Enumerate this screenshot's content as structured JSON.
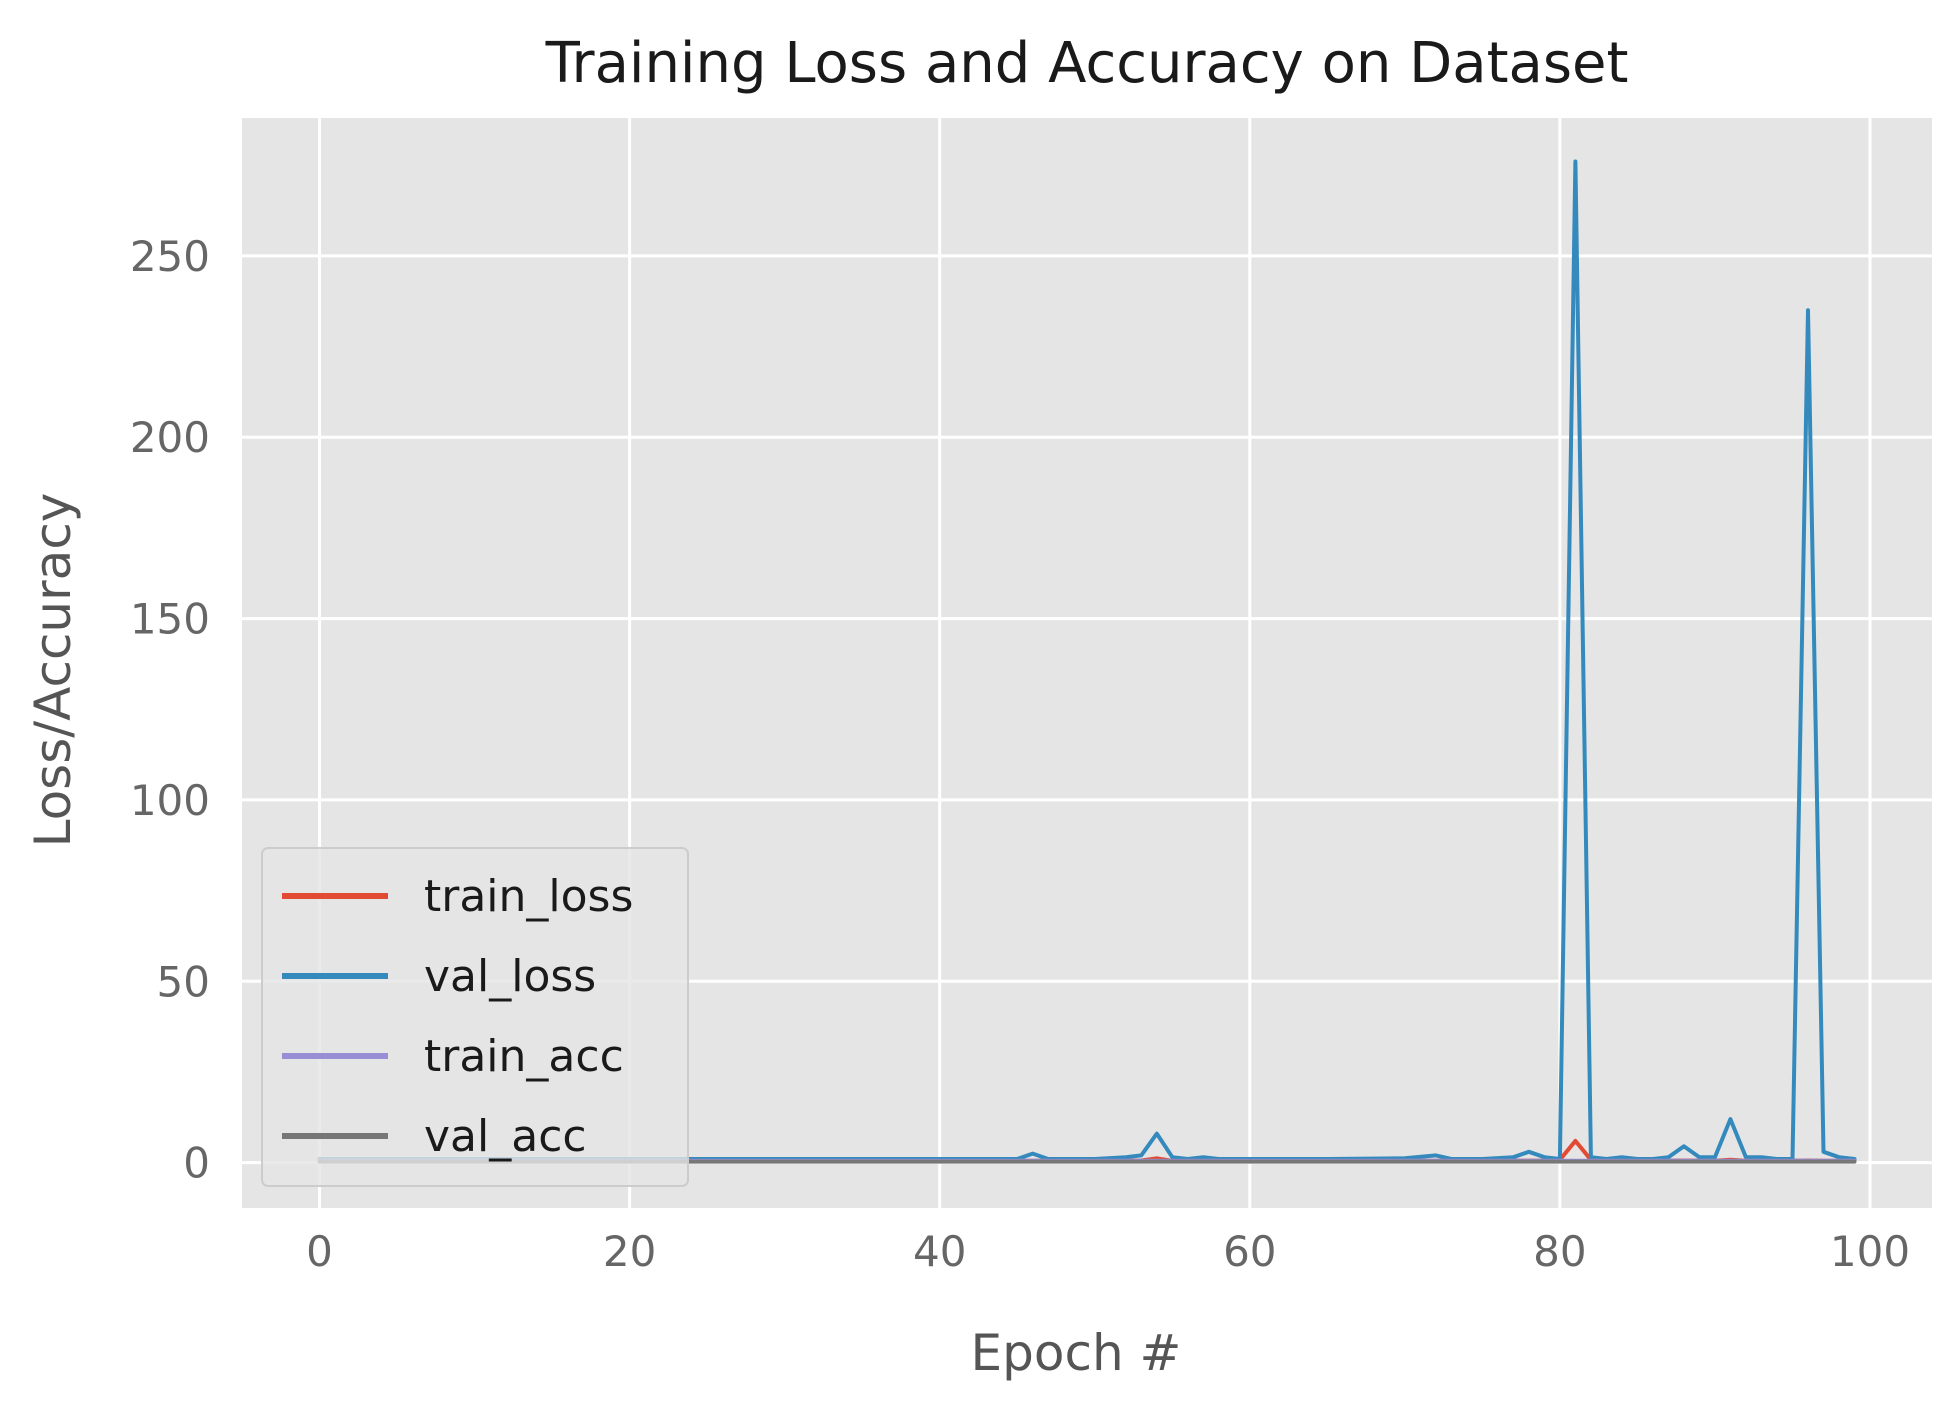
{
  "chart_data": {
    "type": "line",
    "title": "Training Loss and Accuracy on Dataset",
    "xlabel": "Epoch #",
    "ylabel": "Loss/Accuracy",
    "xlim": [
      -5,
      104
    ],
    "ylim": [
      -12.5,
      288
    ],
    "x_ticks": [
      0,
      20,
      40,
      60,
      80,
      100
    ],
    "y_ticks": [
      0,
      50,
      100,
      150,
      200,
      250
    ],
    "grid": true,
    "legend_position": "lower-left",
    "series": [
      {
        "name": "train_loss",
        "color": "#E24A33",
        "x": [
          0,
          5,
          10,
          15,
          20,
          25,
          30,
          35,
          40,
          45,
          50,
          53,
          54,
          55,
          60,
          65,
          70,
          75,
          79,
          80,
          81,
          82,
          83,
          85,
          88,
          90,
          91,
          92,
          95,
          96,
          97,
          99
        ],
        "y": [
          0.8,
          0.6,
          0.5,
          0.5,
          0.5,
          0.5,
          0.5,
          0.5,
          0.5,
          0.5,
          0.5,
          0.6,
          1.2,
          0.5,
          0.5,
          0.5,
          0.5,
          0.5,
          0.6,
          0.8,
          6,
          0.8,
          0.5,
          0.5,
          0.6,
          0.5,
          0.8,
          0.5,
          0.5,
          0.6,
          0.5,
          0.5
        ]
      },
      {
        "name": "val_loss",
        "color": "#348ABD",
        "x": [
          0,
          10,
          20,
          30,
          40,
          45,
          46,
          47,
          50,
          52,
          53,
          54,
          55,
          56,
          57,
          58,
          60,
          65,
          70,
          72,
          73,
          75,
          77,
          78,
          79,
          80,
          81,
          82,
          83,
          84,
          85,
          86,
          87,
          88,
          89,
          90,
          91,
          92,
          93,
          94,
          95,
          96,
          97,
          98,
          99
        ],
        "y": [
          1,
          1,
          1,
          1,
          1,
          1,
          2.5,
          1,
          1,
          1.5,
          2,
          8,
          1.5,
          1,
          1.5,
          1,
          1,
          1,
          1.2,
          2,
          1,
          1,
          1.5,
          3,
          1.5,
          1,
          276,
          1.5,
          1,
          1.5,
          1,
          1,
          1.5,
          4.5,
          1.5,
          1.5,
          12,
          1.5,
          1.5,
          1,
          1,
          235,
          3,
          1.5,
          1
        ]
      },
      {
        "name": "train_acc",
        "color": "#988ED5",
        "x": [
          0,
          20,
          40,
          60,
          80,
          99
        ],
        "y": [
          0.5,
          0.5,
          0.5,
          0.5,
          0.5,
          0.5
        ]
      },
      {
        "name": "val_acc",
        "color": "#777777",
        "x": [
          0,
          20,
          40,
          60,
          80,
          99
        ],
        "y": [
          0.3,
          0.3,
          0.3,
          0.3,
          0.3,
          0.3
        ]
      }
    ]
  },
  "colors": {
    "plot_background": "#E5E5E5",
    "grid": "#FFFFFF"
  }
}
